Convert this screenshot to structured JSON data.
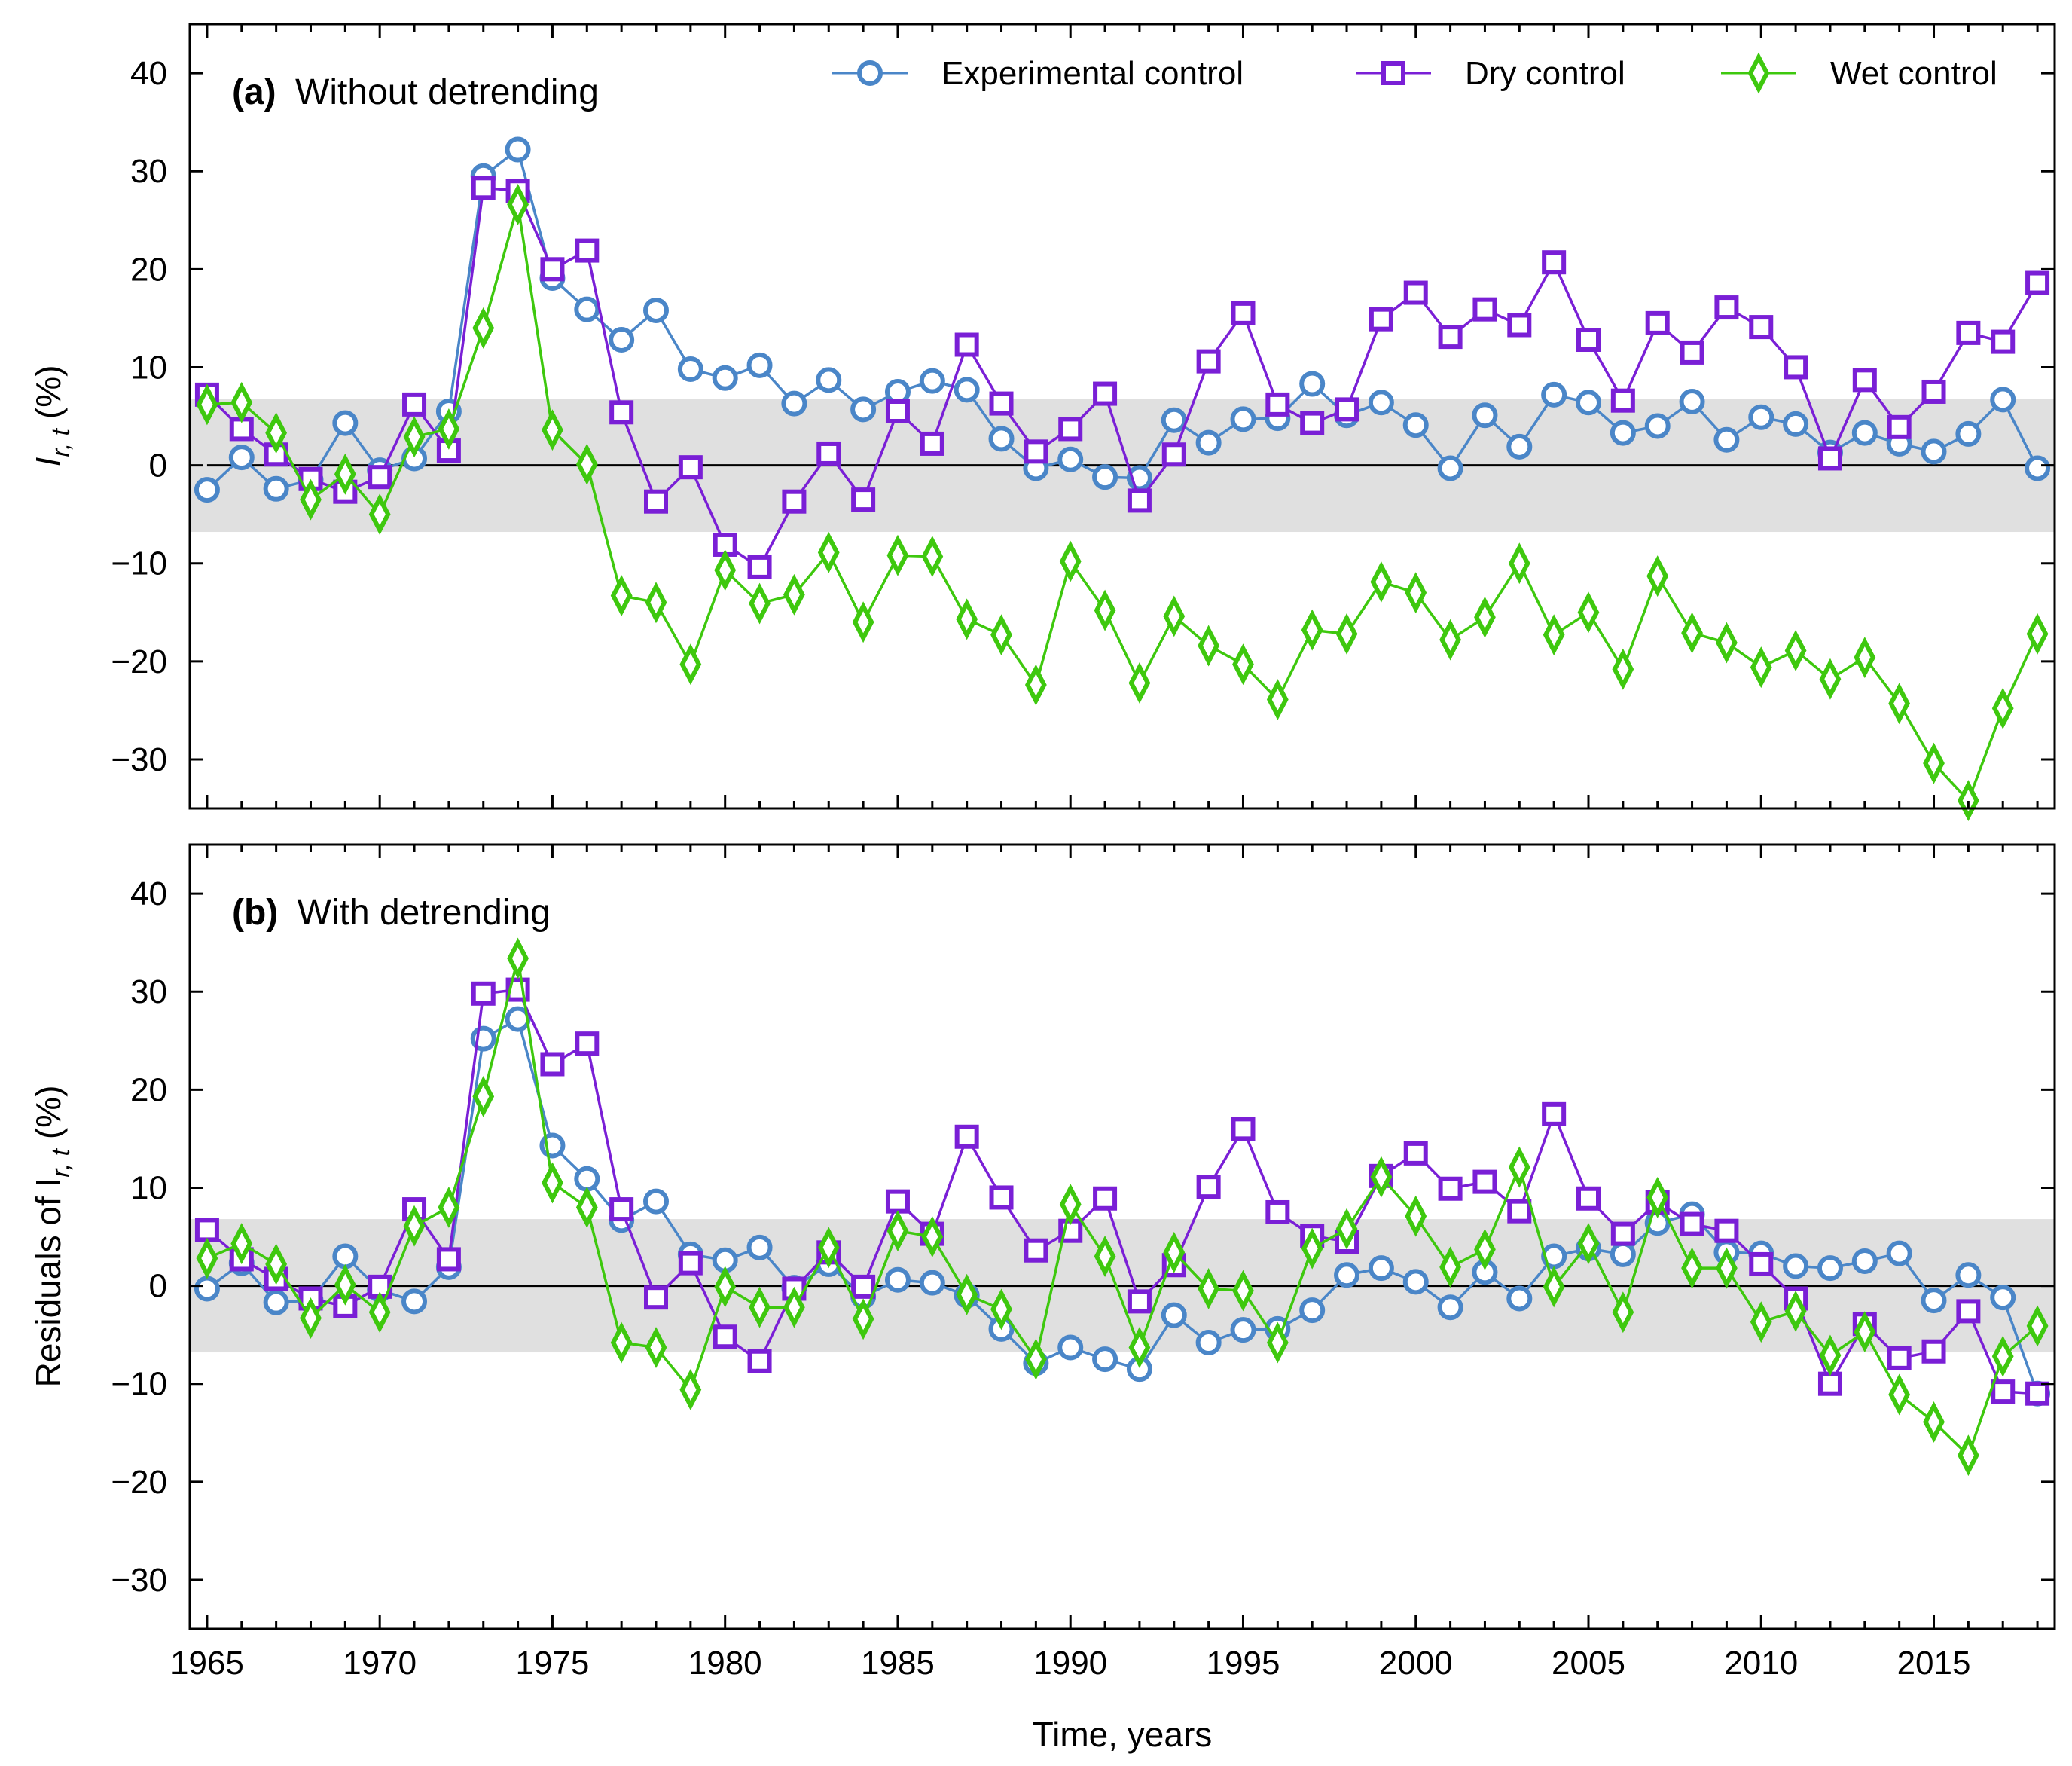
{
  "colors": {
    "experimental": "#4a86c8",
    "dry": "#7a1fd6",
    "wet": "#3ec80e",
    "band": "#e0e0e0"
  },
  "legend": {
    "experimental": "Experimental control",
    "dry": "Dry control",
    "wet": "Wet control"
  },
  "xaxis": {
    "title": "Time, years",
    "ticks": [
      "1965",
      "1970",
      "1975",
      "1980",
      "1985",
      "1990",
      "1995",
      "2000",
      "2005",
      "2010",
      "2015"
    ]
  },
  "yaxis_ticks": [
    "−30",
    "−20",
    "−10",
    "0",
    "10",
    "20",
    "30",
    "40"
  ],
  "panel_a": {
    "label_bold": "(a)",
    "label_text": "Without detrending",
    "ylabel_prefix": "I",
    "ylabel_sub": "r, t",
    "ylabel_suffix": " (%)"
  },
  "panel_b": {
    "label_bold": "(b)",
    "label_text": "With detrending",
    "ylabel_prefix": "Residuals of I",
    "ylabel_sub": "r, t",
    "ylabel_suffix": " (%)"
  },
  "chart_data": [
    {
      "type": "line",
      "title": "(a) Without detrending",
      "xlabel": "Time, years",
      "ylabel": "I_{r,t} (%)",
      "xlim": [
        1964.5,
        2018.5
      ],
      "ylim": [
        -35,
        45
      ],
      "band": [
        -6.8,
        6.8
      ],
      "x": [
        1965,
        1966,
        1967,
        1968,
        1969,
        1970,
        1971,
        1972,
        1973,
        1974,
        1975,
        1976,
        1977,
        1978,
        1979,
        1980,
        1981,
        1982,
        1983,
        1984,
        1985,
        1986,
        1987,
        1988,
        1989,
        1990,
        1991,
        1992,
        1993,
        1994,
        1995,
        1996,
        1997,
        1998,
        1999,
        2000,
        2001,
        2002,
        2003,
        2004,
        2005,
        2006,
        2007,
        2008,
        2009,
        2010,
        2011,
        2012,
        2013,
        2014,
        2015,
        2016,
        2017,
        2018
      ],
      "series": [
        {
          "name": "Experimental control",
          "key": "experimental",
          "values": [
            -2.5,
            0.8,
            -2.4,
            -1.5,
            4.3,
            -0.5,
            0.7,
            5.5,
            29.5,
            32.2,
            19.1,
            15.9,
            12.8,
            15.8,
            9.8,
            8.9,
            10.2,
            6.3,
            8.7,
            5.7,
            7.5,
            8.6,
            7.7,
            2.7,
            -0.3,
            0.6,
            -1.2,
            -1.3,
            4.6,
            2.3,
            4.7,
            4.8,
            8.3,
            5.1,
            6.4,
            4.1,
            -0.3,
            5.1,
            1.9,
            7.2,
            6.4,
            3.3,
            4.0,
            6.5,
            2.6,
            4.9,
            4.2,
            1.3,
            3.3,
            2.2,
            1.4,
            3.2,
            6.7,
            -0.3
          ]
        },
        {
          "name": "Dry control",
          "key": "dry",
          "values": [
            7.2,
            3.7,
            1.1,
            -1.4,
            -2.7,
            -1.2,
            6.2,
            1.5,
            28.3,
            28.0,
            20.0,
            21.9,
            5.4,
            -3.7,
            -0.2,
            -8.1,
            -10.4,
            -3.7,
            1.2,
            -3.5,
            5.5,
            2.2,
            12.3,
            6.3,
            1.4,
            3.7,
            7.3,
            -3.6,
            1.1,
            10.6,
            15.5,
            6.2,
            4.3,
            5.7,
            14.9,
            17.6,
            13.1,
            15.9,
            14.3,
            20.7,
            12.8,
            6.6,
            14.5,
            11.5,
            16.1,
            14.1,
            10.0,
            0.7,
            8.7,
            3.9,
            7.5,
            13.5,
            12.6,
            18.6
          ]
        },
        {
          "name": "Wet control",
          "key": "wet",
          "values": [
            6.2,
            6.4,
            3.3,
            -3.5,
            -0.9,
            -5.0,
            2.9,
            3.7,
            14.0,
            26.6,
            3.6,
            0.1,
            -13.3,
            -14.0,
            -20.3,
            -10.7,
            -14.1,
            -13.2,
            -8.9,
            -16.0,
            -9.2,
            -9.3,
            -15.7,
            -17.3,
            -22.4,
            -9.8,
            -14.8,
            -22.2,
            -15.4,
            -18.4,
            -20.3,
            -23.9,
            -16.8,
            -17.2,
            -11.9,
            -13.0,
            -17.8,
            -15.5,
            -10.0,
            -17.3,
            -15.0,
            -20.8,
            -11.3,
            -17.1,
            -18.1,
            -20.6,
            -18.9,
            -21.8,
            -19.6,
            -24.3,
            -30.4,
            -34.2,
            -24.8,
            -17.2
          ]
        }
      ]
    },
    {
      "type": "line",
      "title": "(b) With detrending",
      "xlabel": "Time, years",
      "ylabel": "Residuals of I_{r,t} (%)",
      "xlim": [
        1964.5,
        2018.5
      ],
      "ylim": [
        -35,
        45
      ],
      "band": [
        -6.8,
        6.8
      ],
      "x": [
        1965,
        1966,
        1967,
        1968,
        1969,
        1970,
        1971,
        1972,
        1973,
        1974,
        1975,
        1976,
        1977,
        1978,
        1979,
        1980,
        1981,
        1982,
        1983,
        1984,
        1985,
        1986,
        1987,
        1988,
        1989,
        1990,
        1991,
        1992,
        1993,
        1994,
        1995,
        1996,
        1997,
        1998,
        1999,
        2000,
        2001,
        2002,
        2003,
        2004,
        2005,
        2006,
        2007,
        2008,
        2009,
        2010,
        2011,
        2012,
        2013,
        2014,
        2015,
        2016,
        2017,
        2018
      ],
      "series": [
        {
          "name": "Experimental control",
          "key": "experimental",
          "values": [
            -0.3,
            2.3,
            -1.7,
            -1.5,
            3.0,
            -0.4,
            -1.6,
            1.9,
            25.2,
            27.2,
            14.3,
            10.9,
            6.7,
            8.6,
            3.2,
            2.6,
            3.9,
            -0.2,
            2.2,
            -1.1,
            0.6,
            0.3,
            -1.0,
            -4.4,
            -7.9,
            -6.3,
            -7.5,
            -8.5,
            -3.0,
            -5.8,
            -4.5,
            -4.4,
            -2.5,
            1.1,
            1.8,
            0.4,
            -2.2,
            1.4,
            -1.3,
            3.0,
            3.8,
            3.2,
            6.4,
            7.3,
            3.4,
            3.3,
            2.0,
            1.8,
            2.5,
            3.3,
            -1.5,
            1.1,
            -1.2,
            -11.0
          ]
        },
        {
          "name": "Dry control",
          "key": "dry",
          "values": [
            5.7,
            2.7,
            0.7,
            -1.3,
            -2.1,
            -0.1,
            7.8,
            2.7,
            29.8,
            30.2,
            22.6,
            24.7,
            7.8,
            -1.2,
            2.3,
            -5.2,
            -7.7,
            -0.3,
            3.4,
            -0.1,
            8.6,
            5.3,
            15.2,
            9.0,
            3.6,
            5.6,
            8.9,
            -1.6,
            2.1,
            10.1,
            16.0,
            7.5,
            5.1,
            4.5,
            11.2,
            13.5,
            9.9,
            10.6,
            7.6,
            17.5,
            8.9,
            5.3,
            8.5,
            6.3,
            5.6,
            2.2,
            -1.3,
            -10.0,
            -3.9,
            -7.4,
            -6.7,
            -2.6,
            -10.8,
            -11.0
          ]
        },
        {
          "name": "Wet control",
          "key": "wet",
          "values": [
            2.8,
            4.3,
            2.2,
            -3.3,
            0.1,
            -2.7,
            6.1,
            8.0,
            19.3,
            33.4,
            10.5,
            8.0,
            -5.8,
            -6.3,
            -10.6,
            -0.1,
            -2.2,
            -2.2,
            3.9,
            -3.4,
            5.6,
            5.0,
            -0.9,
            -2.4,
            -7.5,
            8.3,
            3.0,
            -6.3,
            3.4,
            -0.3,
            -0.5,
            -5.8,
            3.8,
            5.8,
            11.1,
            7.1,
            1.9,
            3.7,
            12.1,
            -0.1,
            4.3,
            -2.7,
            9.0,
            1.8,
            1.8,
            -3.7,
            -2.6,
            -7.1,
            -4.7,
            -11.1,
            -13.9,
            -17.3,
            -7.2,
            -4.1
          ]
        }
      ]
    }
  ]
}
